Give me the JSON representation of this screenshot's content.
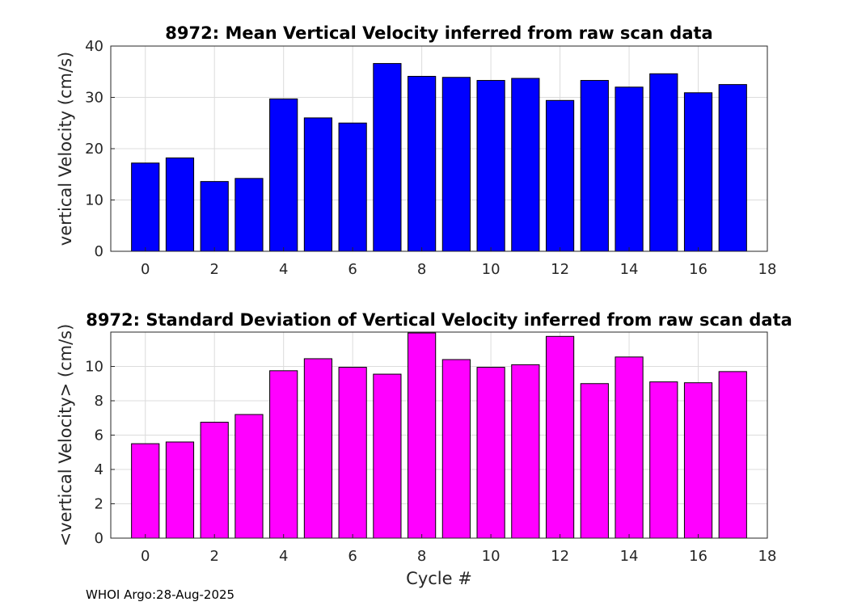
{
  "footer": "WHOI Argo:28-Aug-2025",
  "chart_data": [
    {
      "type": "bar",
      "title": "8972: Mean Vertical Velocity inferred from raw scan data",
      "xlabel": "",
      "ylabel": "vertical Velocity (cm/s)",
      "xlim": [
        -1,
        18
      ],
      "ylim": [
        0,
        40
      ],
      "xticks": [
        0,
        2,
        4,
        6,
        8,
        10,
        12,
        14,
        16,
        18
      ],
      "yticks": [
        0,
        10,
        20,
        30,
        40
      ],
      "grid": true,
      "color": "#0000ff",
      "x": [
        0,
        1,
        2,
        3,
        4,
        5,
        6,
        7,
        8,
        9,
        10,
        11,
        12,
        13,
        14,
        15,
        16,
        17
      ],
      "values": [
        17.2,
        18.2,
        13.6,
        14.2,
        29.7,
        26.0,
        25.0,
        36.6,
        34.1,
        33.9,
        33.3,
        33.7,
        29.4,
        33.3,
        32.0,
        34.6,
        30.9,
        32.5
      ]
    },
    {
      "type": "bar",
      "title": "8972: Standard Deviation of Vertical Velocity inferred from raw scan data",
      "xlabel": "Cycle #",
      "ylabel": "<vertical Velocity> (cm/s)",
      "xlim": [
        -1,
        18
      ],
      "ylim": [
        0,
        12
      ],
      "xticks": [
        0,
        2,
        4,
        6,
        8,
        10,
        12,
        14,
        16,
        18
      ],
      "yticks": [
        0,
        2,
        4,
        6,
        8,
        10
      ],
      "grid": true,
      "color": "#ff00ff",
      "x": [
        0,
        1,
        2,
        3,
        4,
        5,
        6,
        7,
        8,
        9,
        10,
        11,
        12,
        13,
        14,
        15,
        16,
        17
      ],
      "values": [
        5.5,
        5.6,
        6.75,
        7.2,
        9.75,
        10.45,
        9.95,
        9.55,
        11.95,
        10.4,
        9.95,
        10.1,
        11.75,
        9.0,
        10.55,
        9.1,
        9.05,
        9.7
      ]
    }
  ]
}
